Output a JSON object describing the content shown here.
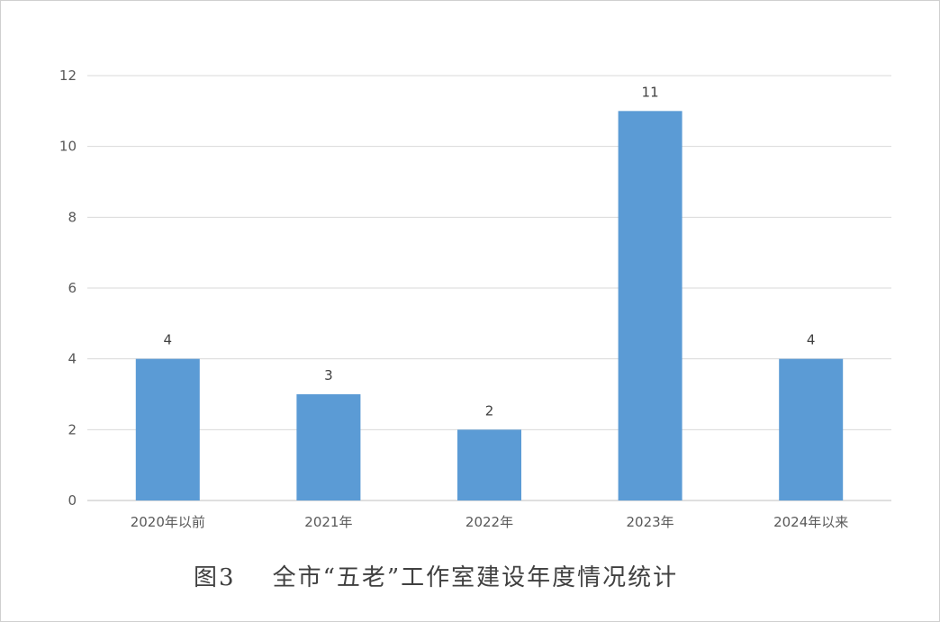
{
  "caption": "图3    全市“五老”工作室建设年度情况统计",
  "chart_data": {
    "type": "bar",
    "categories": [
      "2020年以前",
      "2021年",
      "2022年",
      "2023年",
      "2024年以来"
    ],
    "values": [
      4,
      3,
      2,
      11,
      4
    ],
    "data_labels": [
      "4",
      "3",
      "2",
      "11",
      "4"
    ],
    "ylim": [
      0,
      12
    ],
    "yticks": [
      0,
      2,
      4,
      6,
      8,
      10,
      12
    ],
    "ytick_labels": [
      "0",
      "2",
      "4",
      "6",
      "8",
      "10",
      "12"
    ],
    "grid": true,
    "bar_color": "#5b9bd5",
    "title": "",
    "xlabel": "",
    "ylabel": ""
  }
}
